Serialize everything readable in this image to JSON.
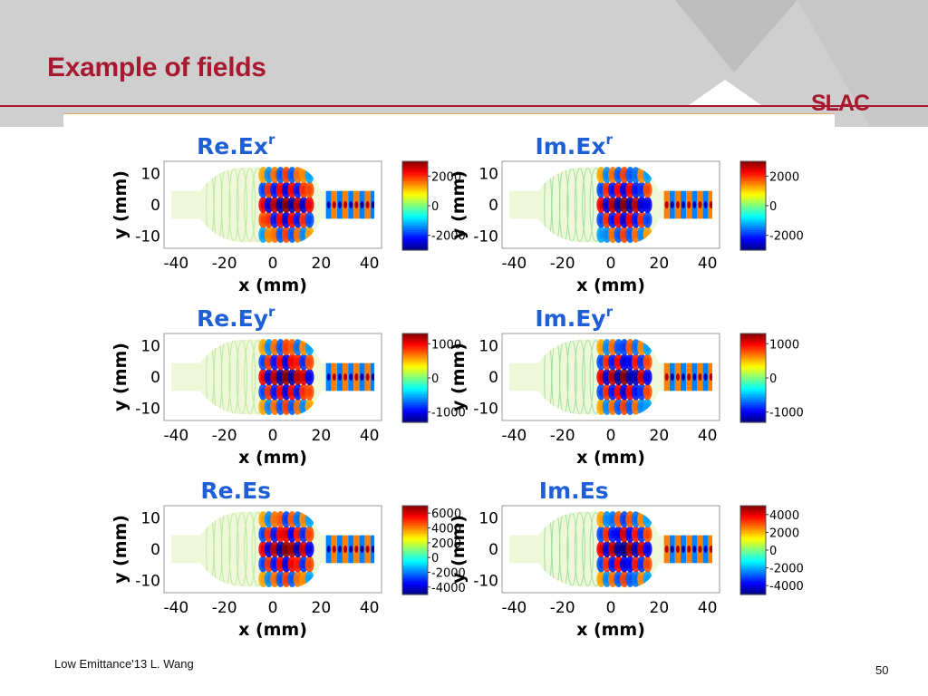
{
  "slide": {
    "title": "Example of fields",
    "logo_text": "SLAC",
    "footer": "Low Emittance'13  L. Wang",
    "page_number": "50",
    "colors": {
      "header_bg": "#cfcfcf",
      "title": "#a6192e",
      "rule": "#a6192e",
      "panel_title": "#1f5fd6"
    }
  },
  "chart_data": [
    {
      "type": "heatmap",
      "title": "Re.Ex",
      "superscript": "r",
      "xlabel": "x (mm)",
      "ylabel": "y (mm)",
      "xlim": [
        -45,
        45
      ],
      "ylim": [
        -14,
        14
      ],
      "xticks": [
        "-40",
        "-20",
        "0",
        "20",
        "40"
      ],
      "yticks": [
        "10",
        "0",
        "-10"
      ],
      "colorbar": {
        "min": -3000,
        "max": 3000,
        "ticks": [
          "2000",
          "0",
          "-2000"
        ],
        "tick_values": [
          2000,
          0,
          -2000
        ]
      }
    },
    {
      "type": "heatmap",
      "title": "Im.Ex",
      "superscript": "r",
      "xlabel": "x (mm)",
      "ylabel": "y (mm)",
      "xlim": [
        -45,
        45
      ],
      "ylim": [
        -14,
        14
      ],
      "xticks": [
        "-40",
        "-20",
        "0",
        "20",
        "40"
      ],
      "yticks": [
        "10",
        "0",
        "-10"
      ],
      "colorbar": {
        "min": -3000,
        "max": 3000,
        "ticks": [
          "2000",
          "0",
          "-2000"
        ],
        "tick_values": [
          2000,
          0,
          -2000
        ]
      }
    },
    {
      "type": "heatmap",
      "title": "Re.Ey",
      "superscript": "r",
      "xlabel": "x (mm)",
      "ylabel": "y (mm)",
      "xlim": [
        -45,
        45
      ],
      "ylim": [
        -14,
        14
      ],
      "xticks": [
        "-40",
        "-20",
        "0",
        "20",
        "40"
      ],
      "yticks": [
        "10",
        "0",
        "-10"
      ],
      "colorbar": {
        "min": -1300,
        "max": 1300,
        "ticks": [
          "1000",
          "0",
          "-1000"
        ],
        "tick_values": [
          1000,
          0,
          -1000
        ]
      }
    },
    {
      "type": "heatmap",
      "title": "Im.Ey",
      "superscript": "r",
      "xlabel": "x (mm)",
      "ylabel": "y (mm)",
      "xlim": [
        -45,
        45
      ],
      "ylim": [
        -14,
        14
      ],
      "xticks": [
        "-40",
        "-20",
        "0",
        "20",
        "40"
      ],
      "yticks": [
        "10",
        "0",
        "-10"
      ],
      "colorbar": {
        "min": -1300,
        "max": 1300,
        "ticks": [
          "1000",
          "0",
          "-1000"
        ],
        "tick_values": [
          1000,
          0,
          -1000
        ]
      }
    },
    {
      "type": "heatmap",
      "title": "Re.Es",
      "superscript": "",
      "xlabel": "x (mm)",
      "ylabel": "y (mm)",
      "xlim": [
        -45,
        45
      ],
      "ylim": [
        -14,
        14
      ],
      "xticks": [
        "-40",
        "-20",
        "0",
        "20",
        "40"
      ],
      "yticks": [
        "10",
        "0",
        "-10"
      ],
      "colorbar": {
        "min": -5000,
        "max": 7000,
        "ticks": [
          "6000",
          "4000",
          "2000",
          "0",
          "-2000",
          "-4000"
        ],
        "tick_values": [
          6000,
          4000,
          2000,
          0,
          -2000,
          -4000
        ]
      }
    },
    {
      "type": "heatmap",
      "title": "Im.Es",
      "superscript": "",
      "xlabel": "x (mm)",
      "ylabel": "y (mm)",
      "xlim": [
        -45,
        45
      ],
      "ylim": [
        -14,
        14
      ],
      "xticks": [
        "-40",
        "-20",
        "0",
        "20",
        "40"
      ],
      "yticks": [
        "10",
        "0",
        "-10"
      ],
      "colorbar": {
        "min": -5000,
        "max": 5000,
        "ticks": [
          "4000",
          "2000",
          "0",
          "-2000",
          "-4000"
        ],
        "tick_values": [
          4000,
          2000,
          0,
          -2000,
          -4000
        ]
      }
    }
  ]
}
